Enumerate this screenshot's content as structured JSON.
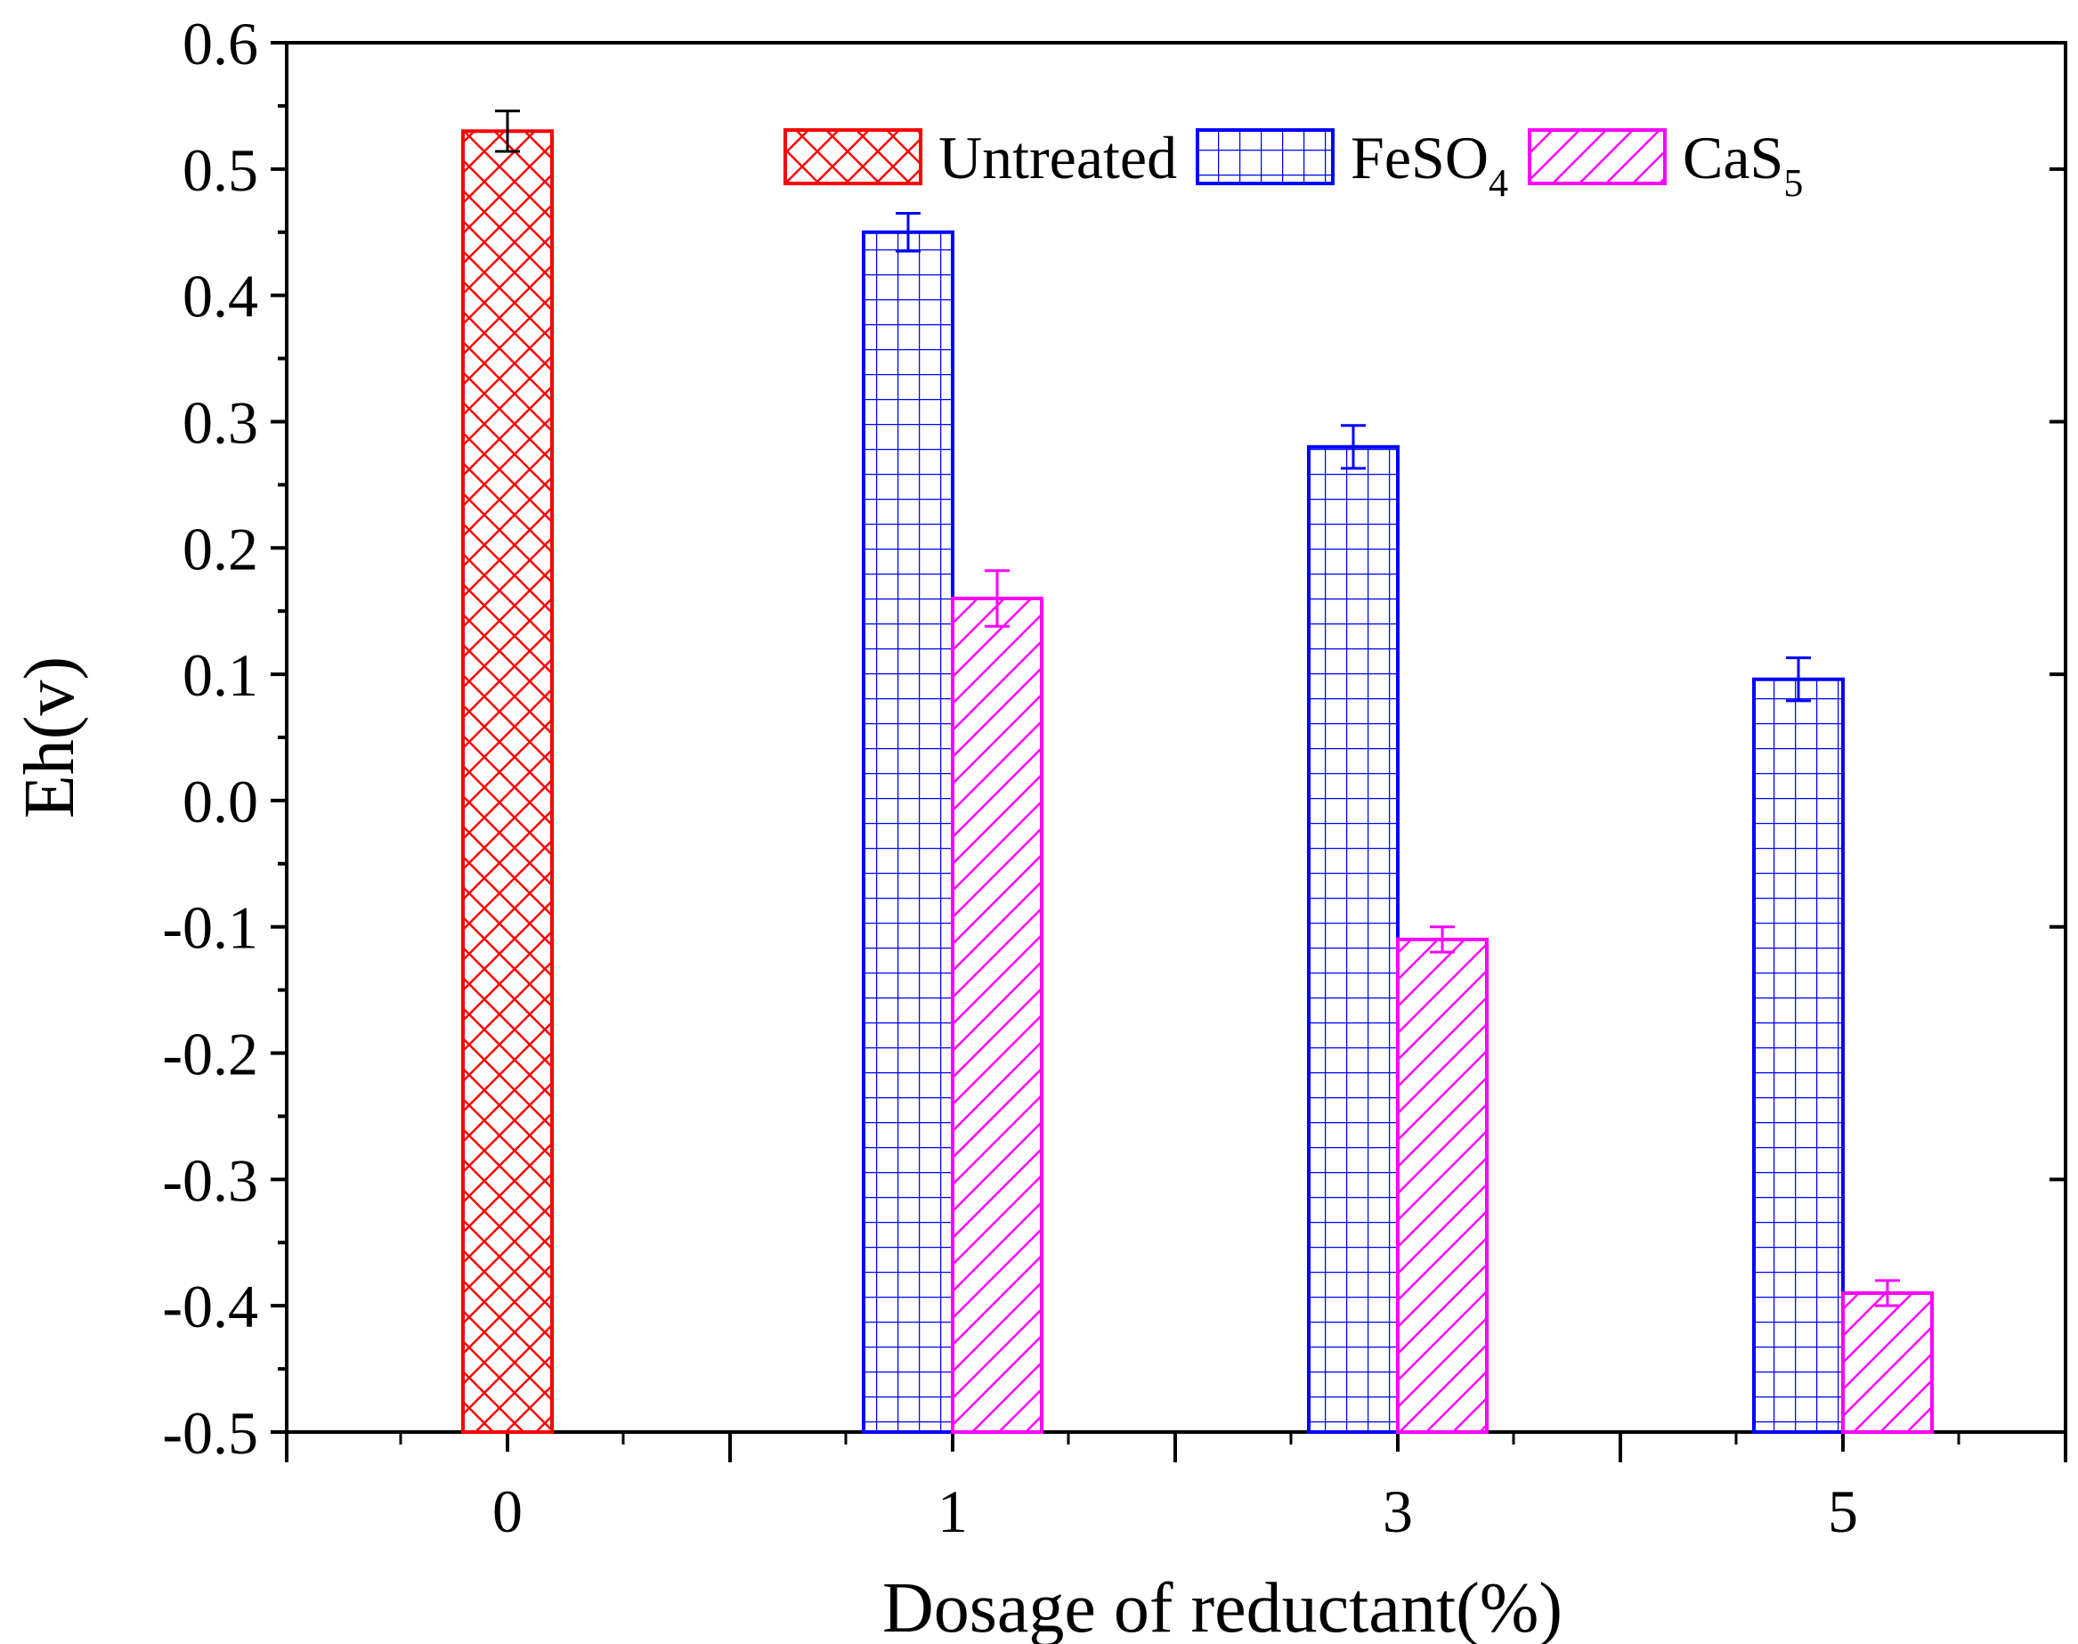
{
  "chart_data": {
    "type": "bar",
    "title": "",
    "xlabel": "Dosage of reductant(%)",
    "ylabel": "Eh(v)",
    "ylim": [
      -0.5,
      0.6
    ],
    "yticks": [
      -0.5,
      -0.4,
      -0.3,
      -0.2,
      -0.1,
      0.0,
      0.1,
      0.2,
      0.3,
      0.4,
      0.5,
      0.6
    ],
    "ytick_labels": [
      "-0.5",
      "-0.4",
      "-0.3",
      "-0.2",
      "-0.1",
      "0.0",
      "0.1",
      "0.2",
      "0.3",
      "0.4",
      "0.5",
      "0.6"
    ],
    "categories": [
      "0",
      "1",
      "3",
      "5"
    ],
    "legend_position": "top-center",
    "grid": false,
    "series": [
      {
        "name": "Untreated",
        "name_main": "Untreated",
        "name_sub": "",
        "color": "#ff0000",
        "pattern": "crosshatch",
        "values": [
          0.53,
          null,
          null,
          null
        ],
        "errors": [
          0.016,
          null,
          null,
          null
        ]
      },
      {
        "name": "FeSO4",
        "name_main": "FeSO",
        "name_sub": "4",
        "color": "#0000ff",
        "pattern": "grid",
        "values": [
          null,
          0.45,
          0.28,
          0.096
        ],
        "errors": [
          null,
          0.015,
          0.017,
          0.017
        ]
      },
      {
        "name": "CaS5",
        "name_main": "CaS",
        "name_sub": "5",
        "color": "#ff00ff",
        "pattern": "diagonal",
        "values": [
          null,
          0.16,
          -0.11,
          -0.39
        ],
        "errors": [
          null,
          0.022,
          0.01,
          0.01
        ]
      }
    ]
  }
}
